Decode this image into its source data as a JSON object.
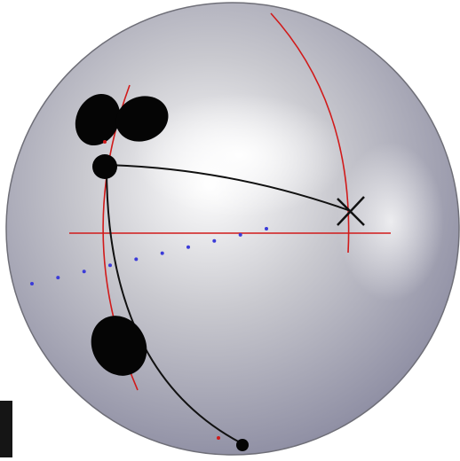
{
  "figure": {
    "subject": "sphere-with-construction-marks",
    "colors": {
      "background": "#ffffff",
      "sphere_highlight": "#ffffff",
      "sphere_mid": "#c9c9cf",
      "sphere_shadow": "#8e8ea3",
      "sphere_outline": "#6f6f78",
      "red_line": "#d11a1a",
      "black_line": "#111111",
      "blue_dots": "#3b3bd8",
      "blob_fill": "#050505"
    },
    "marks": {
      "crosshair": "x-mark",
      "dot_row_count": 10
    }
  }
}
